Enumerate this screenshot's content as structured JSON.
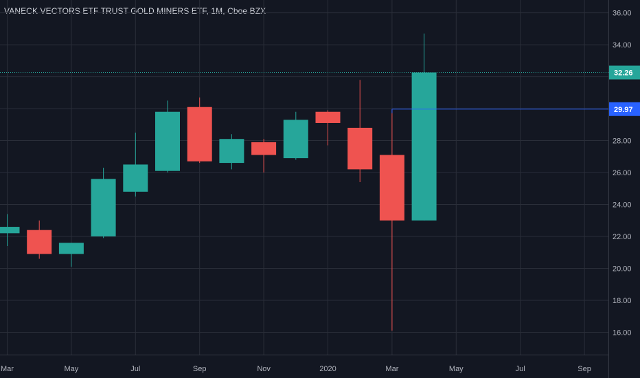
{
  "chart_data": {
    "type": "candlestick",
    "title": "VANECK VECTORS ETF TRUST GOLD MINERS ETF, 1M, Cboe BZX",
    "x_ticks": [
      "Mar",
      "May",
      "Jul",
      "Sep",
      "Nov",
      "2020",
      "Mar",
      "May",
      "Jul",
      "Sep"
    ],
    "y_ticks": [
      "16.00",
      "18.00",
      "20.00",
      "22.00",
      "24.00",
      "26.00",
      "28.00",
      "30.00",
      "32.00",
      "34.00",
      "36.00"
    ],
    "ylim": [
      14.6,
      36.8
    ],
    "candles": [
      {
        "o": 22.2,
        "h": 23.4,
        "l": 21.4,
        "c": 22.6
      },
      {
        "o": 22.4,
        "h": 23.0,
        "l": 20.6,
        "c": 20.9
      },
      {
        "o": 20.9,
        "h": 21.6,
        "l": 20.1,
        "c": 21.6
      },
      {
        "o": 22.0,
        "h": 26.3,
        "l": 21.9,
        "c": 25.6
      },
      {
        "o": 24.8,
        "h": 28.5,
        "l": 24.5,
        "c": 26.5
      },
      {
        "o": 26.1,
        "h": 30.5,
        "l": 26.0,
        "c": 29.8
      },
      {
        "o": 30.1,
        "h": 30.7,
        "l": 26.6,
        "c": 26.7
      },
      {
        "o": 26.6,
        "h": 28.4,
        "l": 26.2,
        "c": 28.1
      },
      {
        "o": 27.9,
        "h": 28.1,
        "l": 26.0,
        "c": 27.1
      },
      {
        "o": 26.9,
        "h": 29.8,
        "l": 26.8,
        "c": 29.3
      },
      {
        "o": 29.8,
        "h": 29.9,
        "l": 27.7,
        "c": 29.1
      },
      {
        "o": 28.8,
        "h": 31.8,
        "l": 25.4,
        "c": 26.2
      },
      {
        "o": 27.1,
        "h": 29.97,
        "l": 16.1,
        "c": 23.0
      },
      {
        "o": 23.0,
        "h": 34.7,
        "l": 23.0,
        "c": 32.26
      }
    ],
    "price_lines": [
      {
        "label": "32.26",
        "value": 32.26,
        "color": "#26a69a",
        "style": "dotted"
      },
      {
        "label": "29.97",
        "value": 29.97,
        "color": "#2962ff",
        "style": "solid"
      }
    ],
    "colors": {
      "up": "#26a69a",
      "down": "#ef5350",
      "background": "#131722",
      "grid": "#2a2e39",
      "axis_text": "#b2b5be"
    },
    "grid": true
  }
}
